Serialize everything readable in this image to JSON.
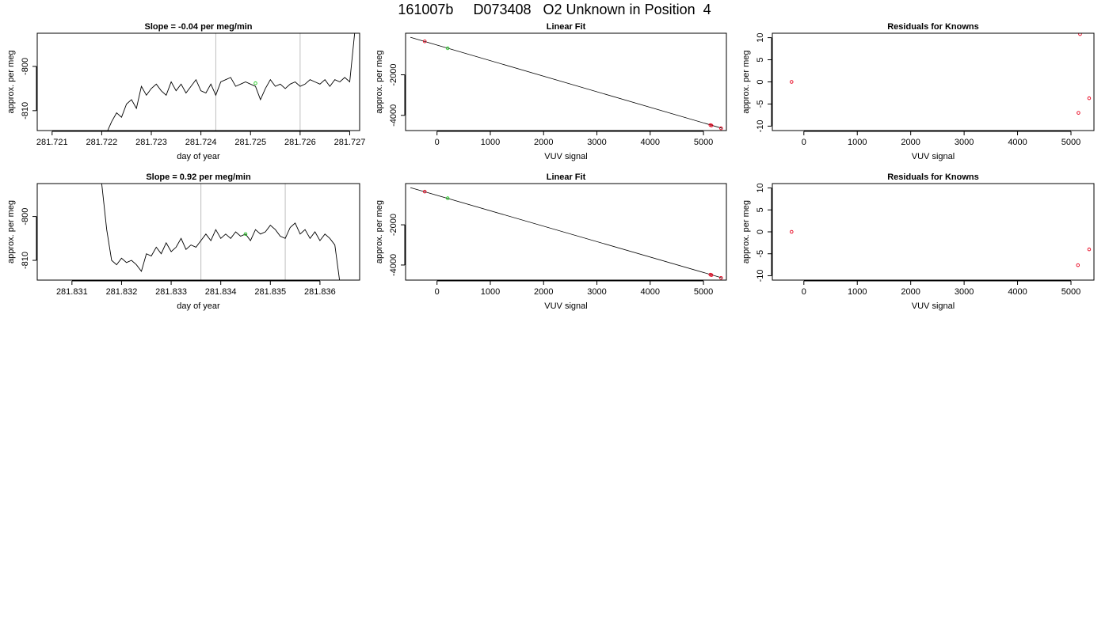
{
  "page_title": "161007b     D073408   O2 Unknown in Position  4",
  "colors": {
    "line": "#000000",
    "known_point": "#e8001c",
    "unknown_point": "#22cc22",
    "ref_line": "#bebebe",
    "frame": "#000000"
  },
  "chart_data": [
    {
      "type": "line",
      "title": "Slope =  -0.04  per meg/min",
      "xlabel": "day of year",
      "ylabel": "approx. per meg",
      "xlim": [
        281.7207,
        281.7272
      ],
      "ylim": [
        -814.5,
        -792.5
      ],
      "xticks": [
        281.721,
        281.722,
        281.723,
        281.724,
        281.725,
        281.726,
        281.727
      ],
      "xtick_labels": [
        "281.721",
        "281.722",
        "281.723",
        "281.724",
        "281.725",
        "281.726",
        "281.727"
      ],
      "yticks": [
        -800,
        -810
      ],
      "ytick_labels": [
        "-800",
        "-810"
      ],
      "vlines": [
        281.7243,
        281.726
      ],
      "series": [
        {
          "x": [
            281.7221,
            281.7222,
            281.7223,
            281.7224,
            281.7225,
            281.7226,
            281.7227,
            281.7228,
            281.7229,
            281.723,
            281.7231,
            281.7232,
            281.7233,
            281.7234,
            281.7235,
            281.7236,
            281.7237,
            281.7238,
            281.7239,
            281.724,
            281.7241,
            281.7242,
            281.7243,
            281.7244,
            281.7245,
            281.7246,
            281.7247,
            281.7248,
            281.7249,
            281.725,
            281.7251,
            281.7252,
            281.7253,
            281.7254,
            281.7255,
            281.7256,
            281.7257,
            281.7258,
            281.7259,
            281.726,
            281.7261,
            281.7262,
            281.7263,
            281.7264,
            281.7265,
            281.7266,
            281.7267,
            281.7268,
            281.7269,
            281.727,
            281.7271
          ],
          "y": [
            -815,
            -812.5,
            -810.5,
            -811.5,
            -808.5,
            -807.5,
            -809.5,
            -804.5,
            -806.5,
            -805,
            -804,
            -805.5,
            -806.5,
            -803.5,
            -805.5,
            -804,
            -806,
            -804.5,
            -803,
            -805.5,
            -806,
            -804,
            -806.5,
            -803.5,
            -803,
            -802.5,
            -804.5,
            -804,
            -803.5,
            -804,
            -804.5,
            -807.5,
            -805,
            -803,
            -804.5,
            -804,
            -805,
            -804,
            -803.5,
            -804.5,
            -804,
            -803,
            -803.5,
            -804,
            -803,
            -804.5,
            -803,
            -803.5,
            -802.5,
            -803.5,
            -792.5
          ]
        }
      ],
      "markers": [
        {
          "x": 281.7251,
          "y": -803.8,
          "color": "#22cc22"
        }
      ]
    },
    {
      "type": "scatter",
      "title": "Linear Fit",
      "xlabel": "VUV signal",
      "ylabel": "approx. per meg",
      "xlim": [
        -590,
        5430
      ],
      "ylim": [
        -4750,
        50
      ],
      "xticks": [
        0,
        1000,
        2000,
        3000,
        4000,
        5000
      ],
      "xtick_labels": [
        "0",
        "1000",
        "2000",
        "3000",
        "4000",
        "5000"
      ],
      "yticks": [
        -2000,
        -4000
      ],
      "ytick_labels": [
        "-2000",
        "-4000"
      ],
      "fit_line": {
        "x": [
          -500,
          5350
        ],
        "y": [
          -150,
          -4640
        ]
      },
      "points": [
        {
          "x": -230,
          "y": -350,
          "color": "#e8001c"
        },
        {
          "x": 5130,
          "y": -4480,
          "color": "#e8001c"
        },
        {
          "x": 5150,
          "y": -4500,
          "color": "#e8001c"
        },
        {
          "x": 5330,
          "y": -4640,
          "color": "#e8001c"
        },
        {
          "x": 200,
          "y": -690,
          "color": "#22cc22"
        }
      ]
    },
    {
      "type": "scatter",
      "title": "Residuals for Knowns",
      "xlabel": "VUV signal",
      "ylabel": "approx. per meg",
      "xlim": [
        -590,
        5430
      ],
      "ylim": [
        -11,
        11
      ],
      "xticks": [
        0,
        1000,
        2000,
        3000,
        4000,
        5000
      ],
      "xtick_labels": [
        "0",
        "1000",
        "2000",
        "3000",
        "4000",
        "5000"
      ],
      "yticks": [
        10,
        5,
        0,
        -5,
        -10
      ],
      "ytick_labels": [
        "10",
        "5",
        "0",
        "-5",
        "-10"
      ],
      "points": [
        {
          "x": -230,
          "y": 0,
          "color": "#e8001c"
        },
        {
          "x": 5170,
          "y": 10.8,
          "color": "#e8001c"
        },
        {
          "x": 5140,
          "y": -7,
          "color": "#e8001c"
        },
        {
          "x": 5340,
          "y": -3.7,
          "color": "#e8001c"
        }
      ]
    },
    {
      "type": "line",
      "title": "Slope =  0.92  per meg/min",
      "xlabel": "day of year",
      "ylabel": "approx. per meg",
      "xlim": [
        281.8303,
        281.8368
      ],
      "ylim": [
        -814.5,
        -792.5
      ],
      "xticks": [
        281.831,
        281.832,
        281.833,
        281.834,
        281.835,
        281.836
      ],
      "xtick_labels": [
        "281.831",
        "281.832",
        "281.833",
        "281.834",
        "281.835",
        "281.836"
      ],
      "yticks": [
        -800,
        -810
      ],
      "ytick_labels": [
        "-800",
        "-810"
      ],
      "vlines": [
        281.8336,
        281.8353
      ],
      "series": [
        {
          "x": [
            281.8316,
            281.8317,
            281.8318,
            281.8319,
            281.832,
            281.8321,
            281.8322,
            281.8323,
            281.8324,
            281.8325,
            281.8326,
            281.8327,
            281.8328,
            281.8329,
            281.833,
            281.8331,
            281.8332,
            281.8333,
            281.8334,
            281.8335,
            281.8336,
            281.8337,
            281.8338,
            281.8339,
            281.834,
            281.8341,
            281.8342,
            281.8343,
            281.8344,
            281.8345,
            281.8346,
            281.8347,
            281.8348,
            281.8349,
            281.835,
            281.8351,
            281.8352,
            281.8353,
            281.8354,
            281.8355,
            281.8356,
            281.8357,
            281.8358,
            281.8359,
            281.836,
            281.8361,
            281.8362,
            281.8363,
            281.8364
          ],
          "y": [
            -792.5,
            -803,
            -810,
            -811,
            -809.5,
            -810.5,
            -810,
            -811,
            -812.5,
            -808.5,
            -809,
            -807,
            -808.5,
            -806,
            -808,
            -807,
            -805,
            -807.5,
            -806.5,
            -807,
            -805.5,
            -804,
            -805.5,
            -803,
            -805,
            -804,
            -805,
            -803.5,
            -804.5,
            -804,
            -805.5,
            -803,
            -804,
            -803.5,
            -802,
            -803,
            -804.5,
            -805,
            -802.5,
            -801.5,
            -804,
            -803,
            -805,
            -803.5,
            -805.5,
            -804,
            -805,
            -806.5,
            -815
          ]
        }
      ],
      "markers": [
        {
          "x": 281.8345,
          "y": -804.0,
          "color": "#22cc22"
        }
      ]
    },
    {
      "type": "scatter",
      "title": "Linear Fit",
      "xlabel": "VUV signal",
      "ylabel": "approx. per meg",
      "xlim": [
        -590,
        5430
      ],
      "ylim": [
        -4750,
        50
      ],
      "xticks": [
        0,
        1000,
        2000,
        3000,
        4000,
        5000
      ],
      "xtick_labels": [
        "0",
        "1000",
        "2000",
        "3000",
        "4000",
        "5000"
      ],
      "yticks": [
        -2000,
        -4000
      ],
      "ytick_labels": [
        "-2000",
        "-4000"
      ],
      "fit_line": {
        "x": [
          -500,
          5350
        ],
        "y": [
          -150,
          -4640
        ]
      },
      "points": [
        {
          "x": -230,
          "y": -350,
          "color": "#e8001c"
        },
        {
          "x": 5130,
          "y": -4480,
          "color": "#e8001c"
        },
        {
          "x": 5150,
          "y": -4500,
          "color": "#e8001c"
        },
        {
          "x": 5330,
          "y": -4640,
          "color": "#e8001c"
        },
        {
          "x": 200,
          "y": -680,
          "color": "#22cc22"
        }
      ]
    },
    {
      "type": "scatter",
      "title": "Residuals for Knowns",
      "xlabel": "VUV signal",
      "ylabel": "approx. per meg",
      "xlim": [
        -590,
        5430
      ],
      "ylim": [
        -11,
        11
      ],
      "xticks": [
        0,
        1000,
        2000,
        3000,
        4000,
        5000
      ],
      "xtick_labels": [
        "0",
        "1000",
        "2000",
        "3000",
        "4000",
        "5000"
      ],
      "yticks": [
        10,
        5,
        0,
        -5,
        -10
      ],
      "ytick_labels": [
        "10",
        "5",
        "0",
        "-5",
        "-10"
      ],
      "points": [
        {
          "x": -230,
          "y": 0,
          "color": "#e8001c"
        },
        {
          "x": 5130,
          "y": -7.6,
          "color": "#e8001c"
        },
        {
          "x": 5340,
          "y": -4,
          "color": "#e8001c"
        }
      ]
    }
  ]
}
